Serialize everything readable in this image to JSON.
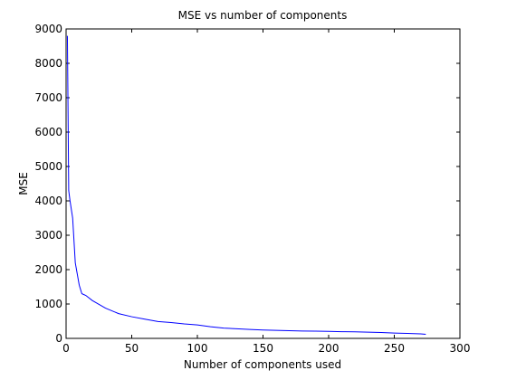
{
  "chart_data": {
    "type": "line",
    "title": "MSE vs number of components",
    "xlabel": "Number of components used",
    "ylabel": "MSE",
    "xlim": [
      0,
      300
    ],
    "ylim": [
      0,
      9000
    ],
    "xticks": [
      0,
      50,
      100,
      150,
      200,
      250,
      300
    ],
    "yticks": [
      0,
      1000,
      2000,
      3000,
      4000,
      5000,
      6000,
      7000,
      8000,
      9000
    ],
    "grid": false,
    "line_color": "#0000ff",
    "series": [
      {
        "x": [
          1,
          2,
          3,
          5,
          7,
          10,
          12,
          15,
          20,
          30,
          40,
          50,
          60,
          70,
          80,
          90,
          100,
          110,
          120,
          130,
          140,
          150,
          160,
          170,
          180,
          190,
          200,
          210,
          220,
          230,
          240,
          250,
          260,
          270,
          274
        ],
        "values": [
          8800,
          4300,
          4000,
          3500,
          2200,
          1550,
          1300,
          1250,
          1100,
          880,
          720,
          630,
          560,
          490,
          460,
          420,
          390,
          340,
          300,
          280,
          260,
          245,
          235,
          225,
          215,
          210,
          205,
          195,
          190,
          180,
          170,
          155,
          145,
          130,
          120
        ]
      }
    ]
  }
}
